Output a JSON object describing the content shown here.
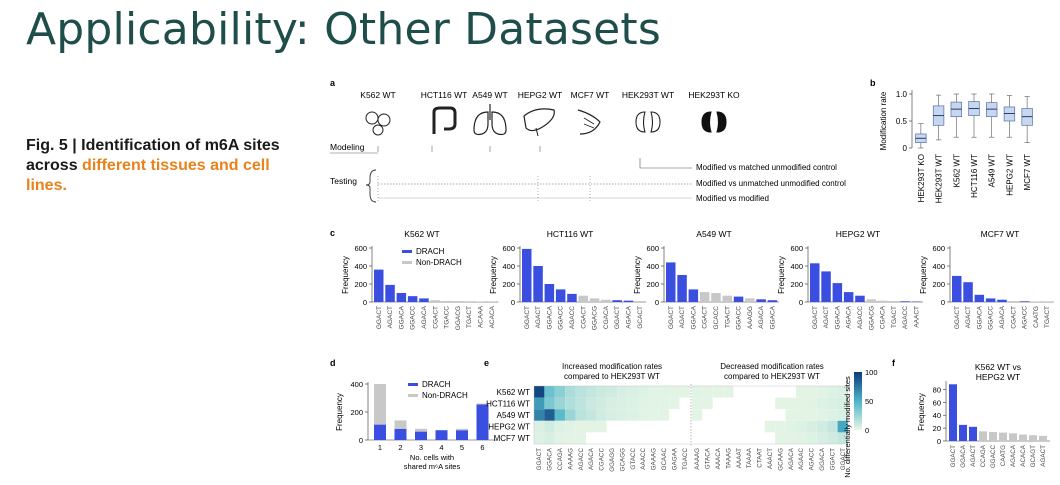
{
  "slide": {
    "title": "Applicability: Other Datasets",
    "caption_prefix": "Fig. 5 | Identification of m6A sites across ",
    "caption_highlight": "different tissues and cell lines."
  },
  "colors": {
    "title": "#1e4d4a",
    "drach": "#3a4fe0",
    "nondrach": "#c8c8c8",
    "highlight": "#e8821c",
    "heat_high": "#0b3b7a",
    "heat_low": "#e9f7e6",
    "box": "#c7d7f0"
  },
  "panel_a": {
    "letter": "a",
    "cells": [
      "K562 WT",
      "HCT116 WT",
      "A549 WT",
      "HEPG2 WT",
      "MCF7 WT",
      "HEK293T WT",
      "HEK293T KO"
    ],
    "organ_icons": [
      "marrow-icon",
      "colon-icon",
      "lung-icon",
      "liver-icon",
      "breast-icon",
      "kidney-icon",
      "kidney-knockout-icon"
    ],
    "modeling_label": "Modeling",
    "testing_label": "Testing",
    "comparisons": [
      "Modified vs matched unmodified control",
      "Modified vs unmatched unmodified control",
      "Modified vs modified"
    ]
  },
  "chart_data": [
    {
      "panel": "b",
      "type": "box",
      "ylabel": "Modification rate",
      "categories": [
        "HEK293T KO",
        "HEK293T WT",
        "K562 WT",
        "HCT116 WT",
        "A549 WT",
        "HEPG2 WT",
        "MCF7 WT"
      ],
      "boxes": [
        {
          "min": 0.0,
          "q1": 0.1,
          "median": 0.18,
          "q3": 0.26,
          "max": 0.45
        },
        {
          "min": 0.15,
          "q1": 0.42,
          "median": 0.6,
          "q3": 0.78,
          "max": 0.98
        },
        {
          "min": 0.2,
          "q1": 0.58,
          "median": 0.72,
          "q3": 0.85,
          "max": 1.0
        },
        {
          "min": 0.2,
          "q1": 0.6,
          "median": 0.73,
          "q3": 0.86,
          "max": 1.0
        },
        {
          "min": 0.2,
          "q1": 0.58,
          "median": 0.72,
          "q3": 0.84,
          "max": 1.0
        },
        {
          "min": 0.2,
          "q1": 0.5,
          "median": 0.64,
          "q3": 0.76,
          "max": 0.97
        },
        {
          "min": 0.1,
          "q1": 0.42,
          "median": 0.58,
          "q3": 0.73,
          "max": 0.95
        }
      ],
      "yticks": [
        "0",
        "0.5",
        "1.0"
      ],
      "ylim": [
        0,
        1.0
      ]
    },
    {
      "panel": "c",
      "type": "bar",
      "title": "K562 WT",
      "ylabel": "Frequency",
      "ylim": [
        0,
        600
      ],
      "yticks": [
        "0",
        "200",
        "400",
        "600"
      ],
      "categories": [
        "GGACT",
        "AGACT",
        "GGACA",
        "GGACC",
        "AGACA",
        "CGACT",
        "TGACC",
        "GGACG",
        "TGACT",
        "ACAAA",
        "ACACA"
      ],
      "values": [
        360,
        190,
        100,
        65,
        40,
        20,
        12,
        10,
        8,
        5,
        4
      ],
      "drach": [
        1,
        1,
        1,
        1,
        1,
        0,
        0,
        0,
        0,
        0,
        0
      ],
      "legend": [
        "DRACH",
        "Non-DRACH"
      ]
    },
    {
      "panel": "c",
      "type": "bar",
      "title": "HCT116 WT",
      "ylabel": "Frequency",
      "ylim": [
        0,
        600
      ],
      "yticks": [
        "0",
        "200",
        "400",
        "600"
      ],
      "categories": [
        "GGACT",
        "AGACT",
        "GGACA",
        "GGACC",
        "AGACC",
        "CGACT",
        "GGACG",
        "CGACA",
        "GGACT",
        "AGACA",
        "GCACT"
      ],
      "values": [
        590,
        400,
        200,
        140,
        90,
        70,
        40,
        25,
        20,
        15,
        10
      ],
      "drach": [
        1,
        1,
        1,
        1,
        1,
        0,
        0,
        0,
        1,
        1,
        0
      ]
    },
    {
      "panel": "c",
      "type": "bar",
      "title": "A549 WT",
      "ylabel": "Frequency",
      "ylim": [
        0,
        600
      ],
      "yticks": [
        "0",
        "200",
        "400",
        "600"
      ],
      "categories": [
        "GGACT",
        "AGACT",
        "GGACA",
        "CGACT",
        "GCACC",
        "TGACT",
        "GGACC",
        "AAAGG",
        "AGACA",
        "GGACA"
      ],
      "values": [
        440,
        300,
        140,
        110,
        100,
        70,
        60,
        40,
        30,
        20
      ],
      "drach": [
        1,
        1,
        1,
        0,
        0,
        0,
        1,
        0,
        1,
        1
      ]
    },
    {
      "panel": "c",
      "type": "bar",
      "title": "HEPG2 WT",
      "ylabel": "Frequency",
      "ylim": [
        0,
        600
      ],
      "yticks": [
        "0",
        "200",
        "400",
        "600"
      ],
      "categories": [
        "GGACT",
        "AGACT",
        "GGACA",
        "AGACA",
        "AGACC",
        "GGACG",
        "CGACA",
        "TGACT",
        "AGACC",
        "AAACT"
      ],
      "values": [
        430,
        340,
        210,
        110,
        70,
        30,
        15,
        10,
        8,
        5
      ],
      "drach": [
        1,
        1,
        1,
        1,
        1,
        0,
        0,
        0,
        1,
        1
      ]
    },
    {
      "panel": "c",
      "type": "bar",
      "title": "MCF7 WT",
      "ylabel": "Frequency",
      "ylim": [
        0,
        600
      ],
      "yticks": [
        "0",
        "200",
        "400",
        "600"
      ],
      "categories": [
        "GGACT",
        "AGACT",
        "GGACA",
        "GGACC",
        "AGACA",
        "CGACT",
        "AGACC",
        "CAATG",
        "TGACT"
      ],
      "values": [
        290,
        220,
        80,
        40,
        25,
        10,
        8,
        5,
        4
      ],
      "drach": [
        1,
        1,
        1,
        1,
        1,
        0,
        1,
        0,
        0
      ]
    },
    {
      "panel": "d",
      "type": "bar",
      "ylabel": "Frequency",
      "xlabel": "No. cells with shared m6A sites",
      "xlabel_line1": "No. cells with",
      "xlabel_line2": "shared m⁶A sites",
      "ylim": [
        0,
        400
      ],
      "yticks": [
        "0",
        "200",
        "400"
      ],
      "categories": [
        "1",
        "2",
        "3",
        "4",
        "5",
        "6"
      ],
      "series": [
        {
          "name": "DRACH",
          "values": [
            110,
            80,
            60,
            70,
            70,
            255
          ]
        },
        {
          "name": "Non-DRACH",
          "values": [
            290,
            60,
            20,
            0,
            10,
            5
          ]
        }
      ],
      "legend": [
        "DRACH",
        "Non-DRACH"
      ]
    },
    {
      "panel": "e",
      "type": "heatmap",
      "title_left_line1": "Increased modification rates",
      "title_left_line2": "compared to HEK293T WT",
      "title_right_line1": "Decreased modification rates",
      "title_right_line2": "compared to HEK293T WT",
      "rows": [
        "K562 WT",
        "HCT116 WT",
        "A549 WT",
        "HEPG2 WT",
        "MCF7 WT"
      ],
      "columns_left": [
        "GGACT",
        "GGACA",
        "CCAGA",
        "AAAAG",
        "AGACC",
        "AGACA",
        "CGACC",
        "GGAGG",
        "GCAGG",
        "GTACC",
        "AAACC",
        "GAAAG",
        "GCAAC",
        "GAGAA",
        "TGACC"
      ],
      "columns_right": [
        "AAAAG",
        "GTACA",
        "AAACA",
        "TAAAG",
        "AAAAT",
        "TAAAA",
        "CTAAT",
        "AAACT",
        "GCAAG",
        "AGACA",
        "AGAAC",
        "AGACC",
        "GGACA",
        "GGACT",
        "GGACT"
      ],
      "colorbar_label": "No. differentially modified sites",
      "colorbar_ticks": [
        "0",
        "50",
        "100"
      ],
      "values_left": [
        [
          95,
          40,
          30,
          20,
          15,
          12,
          10,
          8,
          6,
          5,
          4,
          3,
          3,
          2,
          2
        ],
        [
          60,
          35,
          25,
          18,
          14,
          10,
          8,
          6,
          5,
          4,
          3,
          3,
          2,
          2,
          1
        ],
        [
          70,
          85,
          45,
          25,
          15,
          12,
          8,
          6,
          5,
          4,
          3,
          2,
          2,
          1,
          1
        ],
        [
          5,
          8,
          4,
          3,
          2,
          2,
          2,
          1,
          1,
          1,
          1,
          0,
          0,
          0,
          0
        ],
        [
          4,
          6,
          3,
          2,
          2,
          1,
          1,
          1,
          1,
          0,
          0,
          0,
          0,
          0,
          0
        ]
      ],
      "values_right": [
        [
          3,
          2,
          2,
          2,
          1,
          1,
          1,
          1,
          1,
          1,
          2,
          2,
          3,
          4,
          5
        ],
        [
          2,
          2,
          1,
          1,
          1,
          1,
          1,
          1,
          2,
          2,
          2,
          3,
          4,
          5,
          6
        ],
        [
          2,
          1,
          1,
          1,
          1,
          1,
          1,
          1,
          1,
          2,
          2,
          2,
          3,
          4,
          5
        ],
        [
          1,
          1,
          1,
          1,
          1,
          1,
          1,
          2,
          2,
          3,
          4,
          6,
          8,
          12,
          55
        ],
        [
          1,
          1,
          1,
          1,
          1,
          1,
          1,
          1,
          2,
          2,
          3,
          4,
          6,
          8,
          12
        ]
      ],
      "vmax": 100
    },
    {
      "panel": "f",
      "type": "bar",
      "title_line1": "K562 WT vs",
      "title_line2": "HEPG2 WT",
      "ylabel": "Frequency",
      "ylim": [
        0,
        90
      ],
      "yticks": [
        "0",
        "20",
        "40",
        "60",
        "80"
      ],
      "categories": [
        "GGACT",
        "GGACA",
        "AGACT",
        "CCAGA",
        "GGACC",
        "CAATG",
        "AGACA",
        "ACACA",
        "GCAGT",
        "AGACT"
      ],
      "values": [
        88,
        25,
        22,
        15,
        14,
        13,
        12,
        10,
        9,
        8
      ],
      "drach": [
        1,
        1,
        1,
        0,
        0,
        0,
        0,
        0,
        0,
        0
      ]
    }
  ]
}
